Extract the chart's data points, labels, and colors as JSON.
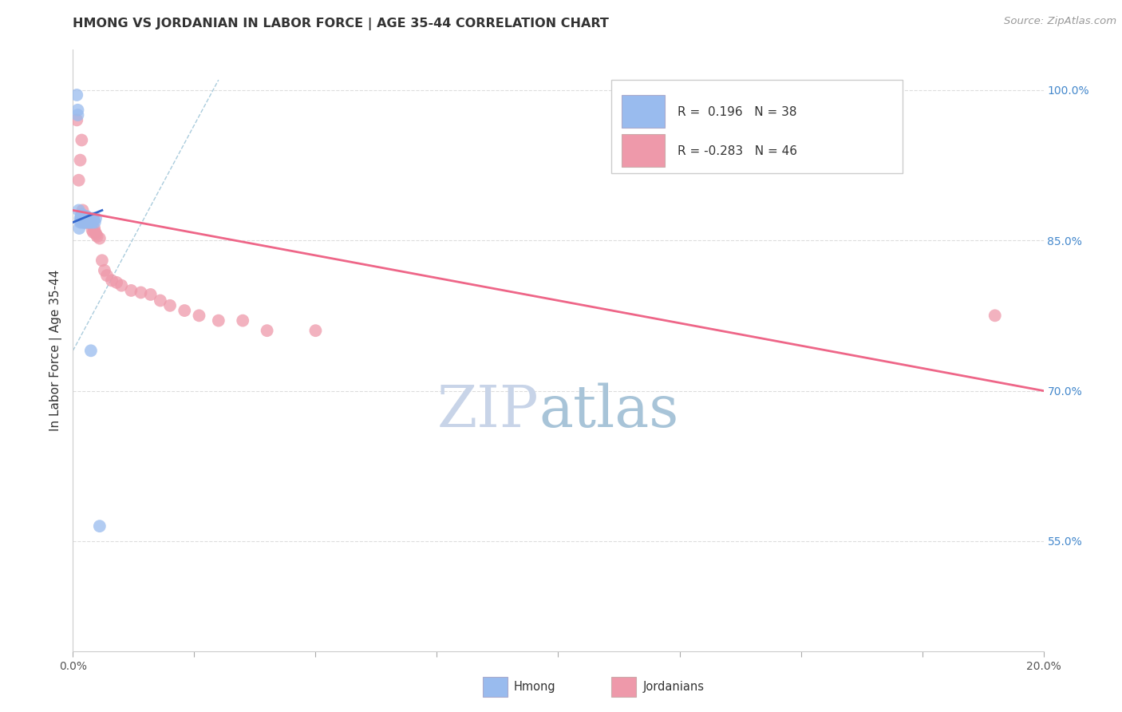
{
  "title": "HMONG VS JORDANIAN IN LABOR FORCE | AGE 35-44 CORRELATION CHART",
  "source_text": "Source: ZipAtlas.com",
  "ylabel": "In Labor Force | Age 35-44",
  "ylabel_right_values": [
    1.0,
    0.85,
    0.7,
    0.55
  ],
  "ylabel_right_labels": [
    "100.0%",
    "85.0%",
    "70.0%",
    "55.0%"
  ],
  "x_min": 0.0,
  "x_max": 0.2,
  "y_min": 0.44,
  "y_max": 1.04,
  "hmong_R": 0.196,
  "hmong_N": 38,
  "jordanian_R": -0.283,
  "jordanian_N": 46,
  "hmong_color": "#99bbee",
  "jordanian_color": "#ee99aa",
  "hmong_line_color": "#3366cc",
  "jordanian_line_color": "#ee6688",
  "diagonal_color": "#aaccdd",
  "watermark_zip_color": "#c8d4e8",
  "watermark_atlas_color": "#a8c4d8",
  "background_color": "#ffffff",
  "grid_color": "#dddddd",
  "title_color": "#333333",
  "right_axis_color": "#4488cc",
  "hmong_points_x": [
    0.0008,
    0.001,
    0.001,
    0.0012,
    0.0013,
    0.0015,
    0.0015,
    0.0016,
    0.0017,
    0.0018,
    0.0018,
    0.0019,
    0.002,
    0.0021,
    0.0022,
    0.0022,
    0.0023,
    0.0024,
    0.0025,
    0.0026,
    0.0027,
    0.0028,
    0.0029,
    0.003,
    0.0031,
    0.0032,
    0.0033,
    0.0034,
    0.0035,
    0.0036,
    0.0037,
    0.0038,
    0.004,
    0.0042,
    0.0043,
    0.0045,
    0.0047,
    0.0055
  ],
  "hmong_points_y": [
    0.995,
    0.975,
    0.98,
    0.88,
    0.862,
    0.868,
    0.872,
    0.87,
    0.874,
    0.872,
    0.876,
    0.868,
    0.87,
    0.872,
    0.868,
    0.874,
    0.87,
    0.872,
    0.868,
    0.87,
    0.872,
    0.874,
    0.87,
    0.868,
    0.872,
    0.87,
    0.868,
    0.872,
    0.87,
    0.868,
    0.74,
    0.87,
    0.868,
    0.872,
    0.87,
    0.868,
    0.872,
    0.565
  ],
  "jordanian_points_x": [
    0.0008,
    0.0012,
    0.0015,
    0.0018,
    0.002,
    0.0022,
    0.0023,
    0.0024,
    0.0025,
    0.0026,
    0.0027,
    0.0028,
    0.0029,
    0.003,
    0.0031,
    0.0032,
    0.0033,
    0.0034,
    0.0035,
    0.0036,
    0.0038,
    0.004,
    0.0042,
    0.0044,
    0.0046,
    0.0048,
    0.005,
    0.0055,
    0.006,
    0.0065,
    0.007,
    0.008,
    0.009,
    0.01,
    0.012,
    0.014,
    0.016,
    0.018,
    0.02,
    0.023,
    0.026,
    0.03,
    0.035,
    0.04,
    0.05,
    0.19
  ],
  "jordanian_points_y": [
    0.97,
    0.91,
    0.93,
    0.95,
    0.88,
    0.872,
    0.868,
    0.87,
    0.872,
    0.868,
    0.87,
    0.868,
    0.87,
    0.868,
    0.87,
    0.868,
    0.872,
    0.868,
    0.87,
    0.868,
    0.868,
    0.86,
    0.858,
    0.862,
    0.858,
    0.856,
    0.854,
    0.852,
    0.83,
    0.82,
    0.815,
    0.81,
    0.808,
    0.805,
    0.8,
    0.798,
    0.796,
    0.79,
    0.785,
    0.78,
    0.775,
    0.77,
    0.77,
    0.76,
    0.76,
    0.775
  ],
  "hmong_line_x": [
    0.0,
    0.006
  ],
  "hmong_line_y": [
    0.868,
    0.88
  ],
  "jordanian_line_x": [
    0.0,
    0.2
  ],
  "jordanian_line_y": [
    0.88,
    0.7
  ]
}
